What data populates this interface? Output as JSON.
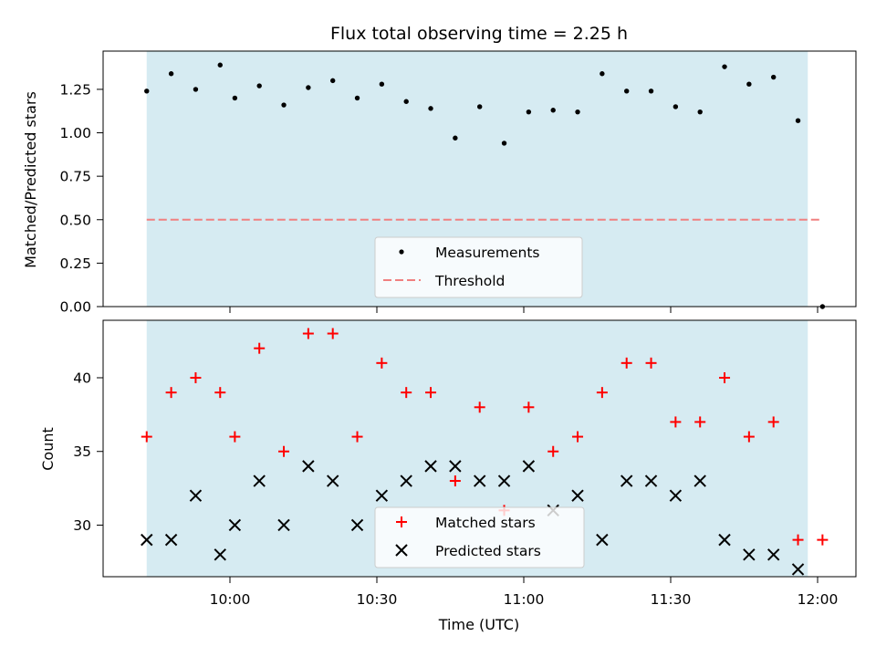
{
  "chart_data": {
    "title": "Flux total observing time = 2.25 h",
    "xlabel": "Time (UTC)",
    "x_ticks": [
      "10:00",
      "10:30",
      "11:00",
      "11:30",
      "12:00"
    ],
    "shaded_span": {
      "start": "09:43",
      "end": "11:58",
      "color": "#add8e6"
    },
    "panels": [
      {
        "type": "scatter",
        "ylabel": "Matched/Predicted stars",
        "ylim": [
          0,
          1.47
        ],
        "y_ticks": [
          "0.00",
          "0.25",
          "0.50",
          "0.75",
          "1.00",
          "1.25"
        ],
        "legend": {
          "placement": "lower-center"
        },
        "series": [
          {
            "name": "Measurements",
            "marker": "dot",
            "color": "#000000",
            "x": [
              "09:43",
              "09:48",
              "09:53",
              "09:58",
              "10:01",
              "10:06",
              "10:11",
              "10:16",
              "10:21",
              "10:26",
              "10:31",
              "10:36",
              "10:41",
              "10:46",
              "10:51",
              "10:56",
              "11:01",
              "11:06",
              "11:11",
              "11:16",
              "11:21",
              "11:26",
              "11:31",
              "11:36",
              "11:41",
              "11:46",
              "11:51",
              "11:56",
              "12:01"
            ],
            "y": [
              1.24,
              1.34,
              1.25,
              1.39,
              1.2,
              1.27,
              1.16,
              1.26,
              1.3,
              1.2,
              1.28,
              1.18,
              1.14,
              0.97,
              1.15,
              0.94,
              1.12,
              1.13,
              1.12,
              1.34,
              1.24,
              1.24,
              1.15,
              1.12,
              1.38,
              1.28,
              1.32,
              1.07,
              0.0
            ]
          }
        ],
        "threshold": {
          "name": "Threshold",
          "y": 0.5,
          "x_start": "09:43",
          "x_end": "12:01",
          "color": "#f08080"
        }
      },
      {
        "type": "scatter",
        "ylabel": "Count",
        "ylim": [
          26.5,
          43.9
        ],
        "y_ticks": [
          "30",
          "35",
          "40"
        ],
        "legend": {
          "placement": "lower-center"
        },
        "series": [
          {
            "name": "Matched stars",
            "marker": "plus",
            "color": "#ff0000",
            "x": [
              "09:43",
              "09:48",
              "09:53",
              "09:58",
              "10:01",
              "10:06",
              "10:11",
              "10:16",
              "10:21",
              "10:26",
              "10:31",
              "10:36",
              "10:41",
              "10:46",
              "10:51",
              "10:56",
              "11:01",
              "11:06",
              "11:11",
              "11:16",
              "11:21",
              "11:26",
              "11:31",
              "11:36",
              "11:41",
              "11:46",
              "11:51",
              "11:56",
              "12:01"
            ],
            "y": [
              36,
              39,
              40,
              39,
              36,
              42,
              35,
              43,
              43,
              36,
              41,
              39,
              39,
              33,
              38,
              31,
              38,
              35,
              36,
              39,
              41,
              41,
              37,
              37,
              40,
              36,
              37,
              29,
              29
            ]
          },
          {
            "name": "Predicted stars",
            "marker": "x",
            "color": "#000000",
            "x": [
              "09:43",
              "09:48",
              "09:53",
              "09:58",
              "10:01",
              "10:06",
              "10:11",
              "10:16",
              "10:21",
              "10:26",
              "10:31",
              "10:36",
              "10:41",
              "10:46",
              "10:51",
              "10:56",
              "11:01",
              "11:06",
              "11:11",
              "11:16",
              "11:21",
              "11:26",
              "11:31",
              "11:36",
              "11:41",
              "11:46",
              "11:51",
              "11:56"
            ],
            "y": [
              29,
              29,
              32,
              28,
              30,
              33,
              30,
              34,
              33,
              30,
              32,
              33,
              34,
              34,
              33,
              33,
              34,
              31,
              32,
              29,
              33,
              33,
              32,
              33,
              29,
              28,
              28,
              27
            ]
          }
        ]
      }
    ]
  }
}
